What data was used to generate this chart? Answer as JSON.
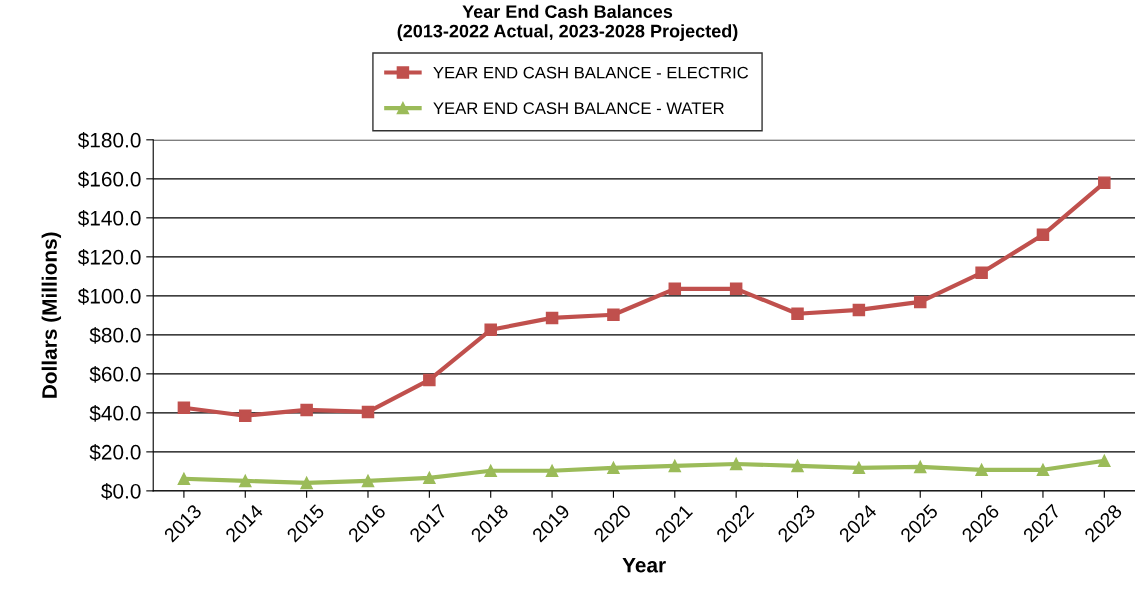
{
  "chart_data": {
    "type": "line",
    "title": "Year End Cash Balances\n(2013-2022 Actual, 2023-2028 Projected)",
    "xlabel": "Year",
    "ylabel": "Dollars (Millions)",
    "categories": [
      "2013",
      "2014",
      "2015",
      "2016",
      "2017",
      "2018",
      "2019",
      "2020",
      "2021",
      "2022",
      "2023",
      "2024",
      "2025",
      "2026",
      "2027",
      "2028"
    ],
    "series": [
      {
        "name": "YEAR END CASH BALANCE - ELECTRIC",
        "color": "#c0504d",
        "marker": "square",
        "values": [
          42.6,
          38.5,
          41.5,
          40.5,
          56.9,
          82.6,
          88.7,
          90.3,
          103.6,
          103.6,
          90.8,
          92.8,
          96.9,
          111.8,
          131.3,
          158.0
        ]
      },
      {
        "name": "YEAR END CASH BALANCE - WATER",
        "color": "#9bbb59",
        "marker": "triangle",
        "values": [
          6.2,
          5.1,
          4.1,
          5.1,
          6.7,
          10.3,
          10.3,
          11.8,
          12.8,
          13.8,
          12.8,
          11.8,
          12.3,
          10.8,
          10.8,
          15.4
        ]
      }
    ],
    "ylim": [
      0,
      180
    ],
    "yticks": [
      {
        "value": 0,
        "label": "$0.0"
      },
      {
        "value": 20,
        "label": "$20.0"
      },
      {
        "value": 40,
        "label": "$40.0"
      },
      {
        "value": 60,
        "label": "$60.0"
      },
      {
        "value": 80,
        "label": "$80.0"
      },
      {
        "value": 100,
        "label": "$100.0"
      },
      {
        "value": 120,
        "label": "$120.0"
      },
      {
        "value": 140,
        "label": "$140.0"
      },
      {
        "value": 160,
        "label": "$160.0"
      },
      {
        "value": 180,
        "label": "$180.0"
      }
    ],
    "grid": "y",
    "legend": "top",
    "line_style": "solid"
  }
}
